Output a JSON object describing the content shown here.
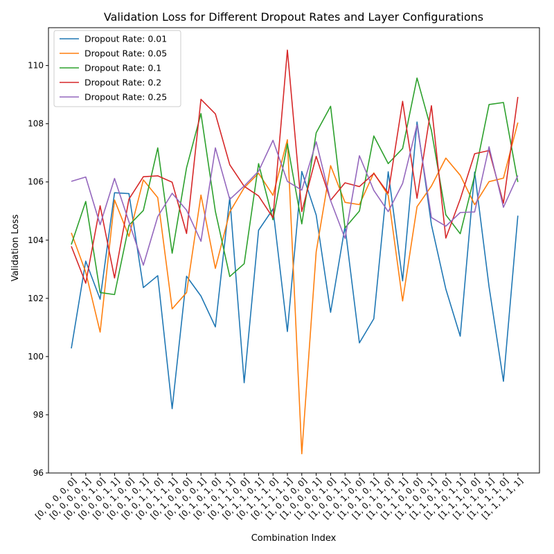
{
  "chart_data": {
    "type": "line",
    "title": "Validation Loss for Different Dropout Rates and Layer Configurations",
    "xlabel": "Combination Index",
    "ylabel": "Validation Loss",
    "ylim": [
      96,
      111.3
    ],
    "yticks": [
      96,
      98,
      100,
      102,
      104,
      106,
      108,
      110
    ],
    "grid": false,
    "legend_position": "top-left",
    "categories": [
      "[0, 0, 0, 0, 0]",
      "[0, 0, 0, 0, 1]",
      "[0, 0, 0, 1, 0]",
      "[0, 0, 0, 1, 1]",
      "[0, 0, 1, 0, 0]",
      "[0, 0, 1, 0, 1]",
      "[0, 0, 1, 1, 0]",
      "[0, 0, 1, 1, 1]",
      "[0, 1, 0, 0, 0]",
      "[0, 1, 0, 0, 1]",
      "[0, 1, 0, 1, 0]",
      "[0, 1, 0, 1, 1]",
      "[0, 1, 1, 0, 0]",
      "[0, 1, 1, 0, 1]",
      "[0, 1, 1, 1, 0]",
      "[0, 1, 1, 1, 1]",
      "[1, 0, 0, 0, 0]",
      "[1, 0, 0, 0, 1]",
      "[1, 0, 0, 1, 0]",
      "[1, 0, 0, 1, 1]",
      "[1, 0, 1, 0, 0]",
      "[1, 0, 1, 0, 1]",
      "[1, 0, 1, 1, 0]",
      "[1, 0, 1, 1, 1]",
      "[1, 1, 0, 0, 0]",
      "[1, 1, 0, 0, 1]",
      "[1, 1, 0, 1, 0]",
      "[1, 1, 0, 1, 1]",
      "[1, 1, 1, 0, 0]",
      "[1, 1, 1, 0, 1]",
      "[1, 1, 1, 1, 0]",
      "[1, 1, 1, 1, 1]"
    ],
    "series": [
      {
        "name": "Dropout Rate: 0.01",
        "color": "#1f77b4",
        "values": [
          100.28,
          103.28,
          101.97,
          105.63,
          105.6,
          102.37,
          102.78,
          98.21,
          102.76,
          102.08,
          101.02,
          105.47,
          99.1,
          104.34,
          105.07,
          100.86,
          106.36,
          104.86,
          101.52,
          104.47,
          100.47,
          101.3,
          106.35,
          102.6,
          108.06,
          104.53,
          102.32,
          100.7,
          106.34,
          102.4,
          99.15,
          104.84
        ]
      },
      {
        "name": "Dropout Rate: 0.05",
        "color": "#ff7f0e",
        "values": [
          104.25,
          102.9,
          100.84,
          105.38,
          104.13,
          106.07,
          105.46,
          101.64,
          102.2,
          105.55,
          103.03,
          104.97,
          105.8,
          106.3,
          105.54,
          107.45,
          96.66,
          103.6,
          106.56,
          105.3,
          105.22,
          106.31,
          105.54,
          101.91,
          105.15,
          105.86,
          106.82,
          106.23,
          105.22,
          106.01,
          106.13,
          108.04
        ]
      },
      {
        "name": "Dropout Rate: 0.1",
        "color": "#2ca02c",
        "values": [
          103.85,
          105.33,
          102.2,
          102.13,
          104.51,
          105.02,
          107.17,
          103.55,
          106.49,
          108.35,
          104.99,
          102.75,
          103.19,
          106.63,
          104.7,
          107.31,
          104.56,
          107.69,
          108.6,
          104.42,
          105.0,
          107.58,
          106.63,
          107.15,
          109.57,
          107.77,
          104.87,
          104.22,
          106.22,
          108.66,
          108.73,
          106.0
        ]
      },
      {
        "name": "Dropout Rate: 0.2",
        "color": "#d62728",
        "values": [
          103.79,
          102.52,
          105.18,
          102.7,
          105.41,
          106.18,
          106.21,
          105.99,
          104.23,
          108.84,
          108.34,
          106.59,
          105.85,
          105.52,
          104.77,
          110.53,
          104.98,
          106.88,
          105.37,
          105.97,
          105.84,
          106.29,
          105.61,
          108.77,
          105.44,
          108.62,
          104.07,
          105.41,
          106.97,
          107.08,
          105.27,
          108.92
        ]
      },
      {
        "name": "Dropout Rate: 0.25",
        "color": "#9467bd",
        "values": [
          106.02,
          106.17,
          104.53,
          106.12,
          104.63,
          103.14,
          104.81,
          105.61,
          105.03,
          103.96,
          107.17,
          105.4,
          105.86,
          106.37,
          107.43,
          106.02,
          105.72,
          107.38,
          105.36,
          104.06,
          106.9,
          105.71,
          104.98,
          105.95,
          107.96,
          104.78,
          104.48,
          104.95,
          104.97,
          107.21,
          105.13,
          106.22
        ]
      }
    ]
  }
}
